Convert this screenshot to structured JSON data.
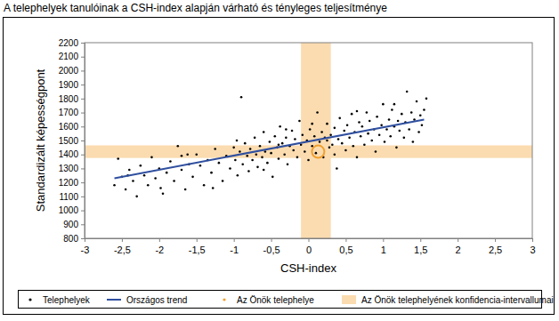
{
  "chart_data": {
    "type": "scatter",
    "title": "A telephelyek tanulóinak a CSH-index alapján várható és tényleges teljesítménye",
    "x_label": "CSH-index",
    "y_label": "Standardizált képességpont",
    "xlim": [
      -3,
      3
    ],
    "ylim": [
      800,
      2200
    ],
    "xticks": [
      -3,
      {
        "value": -2.5,
        "label": "-2,5"
      },
      -2,
      {
        "value": -1.5,
        "label": "-1,5"
      },
      -1,
      {
        "value": -0.5,
        "label": "-0,5"
      },
      0,
      {
        "value": 0.5,
        "label": "0,5"
      },
      1,
      {
        "value": 1.5,
        "label": "1,5"
      },
      2,
      {
        "value": 2.5,
        "label": "2,5"
      },
      3
    ],
    "yticks": [
      800,
      900,
      1000,
      1100,
      1200,
      1300,
      1400,
      1500,
      1600,
      1700,
      1800,
      1900,
      2000,
      2100,
      2200
    ],
    "grid": false,
    "legend": "bottom",
    "series": [
      {
        "name": "Telephelyek",
        "type": "scatter",
        "marker": "dot",
        "color": "#000000",
        "x": [
          -2.55,
          -2.5,
          -2.45,
          -2.4,
          -2.35,
          -2.3,
          -2.25,
          -2.2,
          -2.15,
          -2.1,
          -2.05,
          -2.0,
          -1.95,
          -1.9,
          -1.85,
          -1.8,
          -1.75,
          -1.7,
          -1.65,
          -1.6,
          -1.55,
          -1.5,
          -1.45,
          -1.4,
          -1.35,
          -1.3,
          -1.25,
          -1.2,
          -1.15,
          -1.1,
          -1.05,
          -1.0,
          -0.98,
          -0.95,
          -0.92,
          -0.9,
          -0.88,
          -0.85,
          -0.82,
          -0.8,
          -0.78,
          -0.75,
          -0.72,
          -0.7,
          -0.68,
          -0.65,
          -0.62,
          -0.6,
          -0.58,
          -0.55,
          -0.52,
          -0.5,
          -0.48,
          -0.45,
          -0.42,
          -0.4,
          -0.38,
          -0.35,
          -0.32,
          -0.3,
          -0.28,
          -0.25,
          -0.22,
          -0.2,
          -0.18,
          -0.15,
          -0.12,
          -0.1,
          -0.08,
          -0.05,
          -0.02,
          0,
          0.02,
          0.05,
          0.08,
          0.1,
          0.12,
          0.15,
          0.18,
          0.2,
          0.22,
          0.25,
          0.28,
          0.3,
          0.32,
          0.35,
          0.38,
          0.4,
          0.42,
          0.45,
          0.48,
          0.5,
          0.52,
          0.55,
          0.58,
          0.6,
          0.62,
          0.65,
          0.68,
          0.7,
          0.72,
          0.75,
          0.78,
          0.8,
          0.82,
          0.85,
          0.88,
          0.9,
          0.92,
          0.95,
          0.98,
          1,
          1.02,
          1.05,
          1.08,
          1.1,
          1.12,
          1.15,
          1.18,
          1.2,
          1.22,
          1.25,
          1.28,
          1.3,
          1.32,
          1.35,
          1.38,
          1.4,
          1.42,
          1.45,
          1.48,
          1.5,
          1.52,
          1.55,
          1.58,
          -2.6,
          -2.42,
          -1.98,
          -1.62,
          -1.28,
          -0.96,
          -0.6,
          -0.3,
          0.05,
          0.35,
          0.65,
          1.15,
          -1.7,
          -0.4,
          0.25
        ],
        "values": [
          1370,
          1240,
          1150,
          1290,
          1210,
          1100,
          1320,
          1250,
          1180,
          1380,
          1230,
          1300,
          1120,
          1270,
          1350,
          1210,
          1460,
          1290,
          1150,
          1330,
          1240,
          1400,
          1320,
          1180,
          1360,
          1270,
          1440,
          1340,
          1210,
          1390,
          1300,
          1450,
          1360,
          1250,
          1420,
          1810,
          1330,
          1480,
          1390,
          1280,
          1440,
          1360,
          1520,
          1400,
          1310,
          1460,
          1380,
          1560,
          1420,
          1340,
          1490,
          1410,
          1240,
          1530,
          1450,
          1370,
          1600,
          1480,
          1400,
          1520,
          1330,
          1460,
          1570,
          1430,
          1510,
          1380,
          1640,
          1470,
          1540,
          1420,
          1500,
          1360,
          1580,
          1460,
          1530,
          1410,
          1700,
          1490,
          1560,
          1380,
          1520,
          1620,
          1450,
          1540,
          1470,
          1590,
          1300,
          1510,
          1660,
          1480,
          1570,
          1430,
          1610,
          1520,
          1690,
          1460,
          1560,
          1380,
          1630,
          1530,
          1600,
          1470,
          1700,
          1550,
          1640,
          1500,
          1580,
          1420,
          1670,
          1540,
          1610,
          1760,
          1490,
          1580,
          1650,
          1530,
          1720,
          1600,
          1450,
          1640,
          1570,
          1690,
          1520,
          1630,
          1850,
          1580,
          1700,
          1490,
          1650,
          1780,
          1560,
          1680,
          1610,
          1720,
          1800,
          1180,
          1250,
          1160,
          1400,
          1160,
          1500,
          1290,
          1580,
          1620,
          1400,
          1710,
          1760,
          1390,
          1470,
          1500
        ]
      },
      {
        "name": "Országos trend",
        "type": "line",
        "line_style": "solid",
        "color": "#2f4f9f",
        "x": [
          -2.6,
          1.55
        ],
        "values": [
          1230,
          1650
        ]
      },
      {
        "name": "Az Önök telephelye",
        "type": "scatter",
        "marker": "ring",
        "color": "#f0a030",
        "x": [
          0.13
        ],
        "values": [
          1420
        ]
      }
    ],
    "confidence_intervals": {
      "name": "Az Önök telephelyének konfidencia-intervallumai",
      "color": "#fbdcb0",
      "x": [
        -0.1,
        0.3
      ],
      "y": [
        1375,
        1465
      ]
    }
  }
}
